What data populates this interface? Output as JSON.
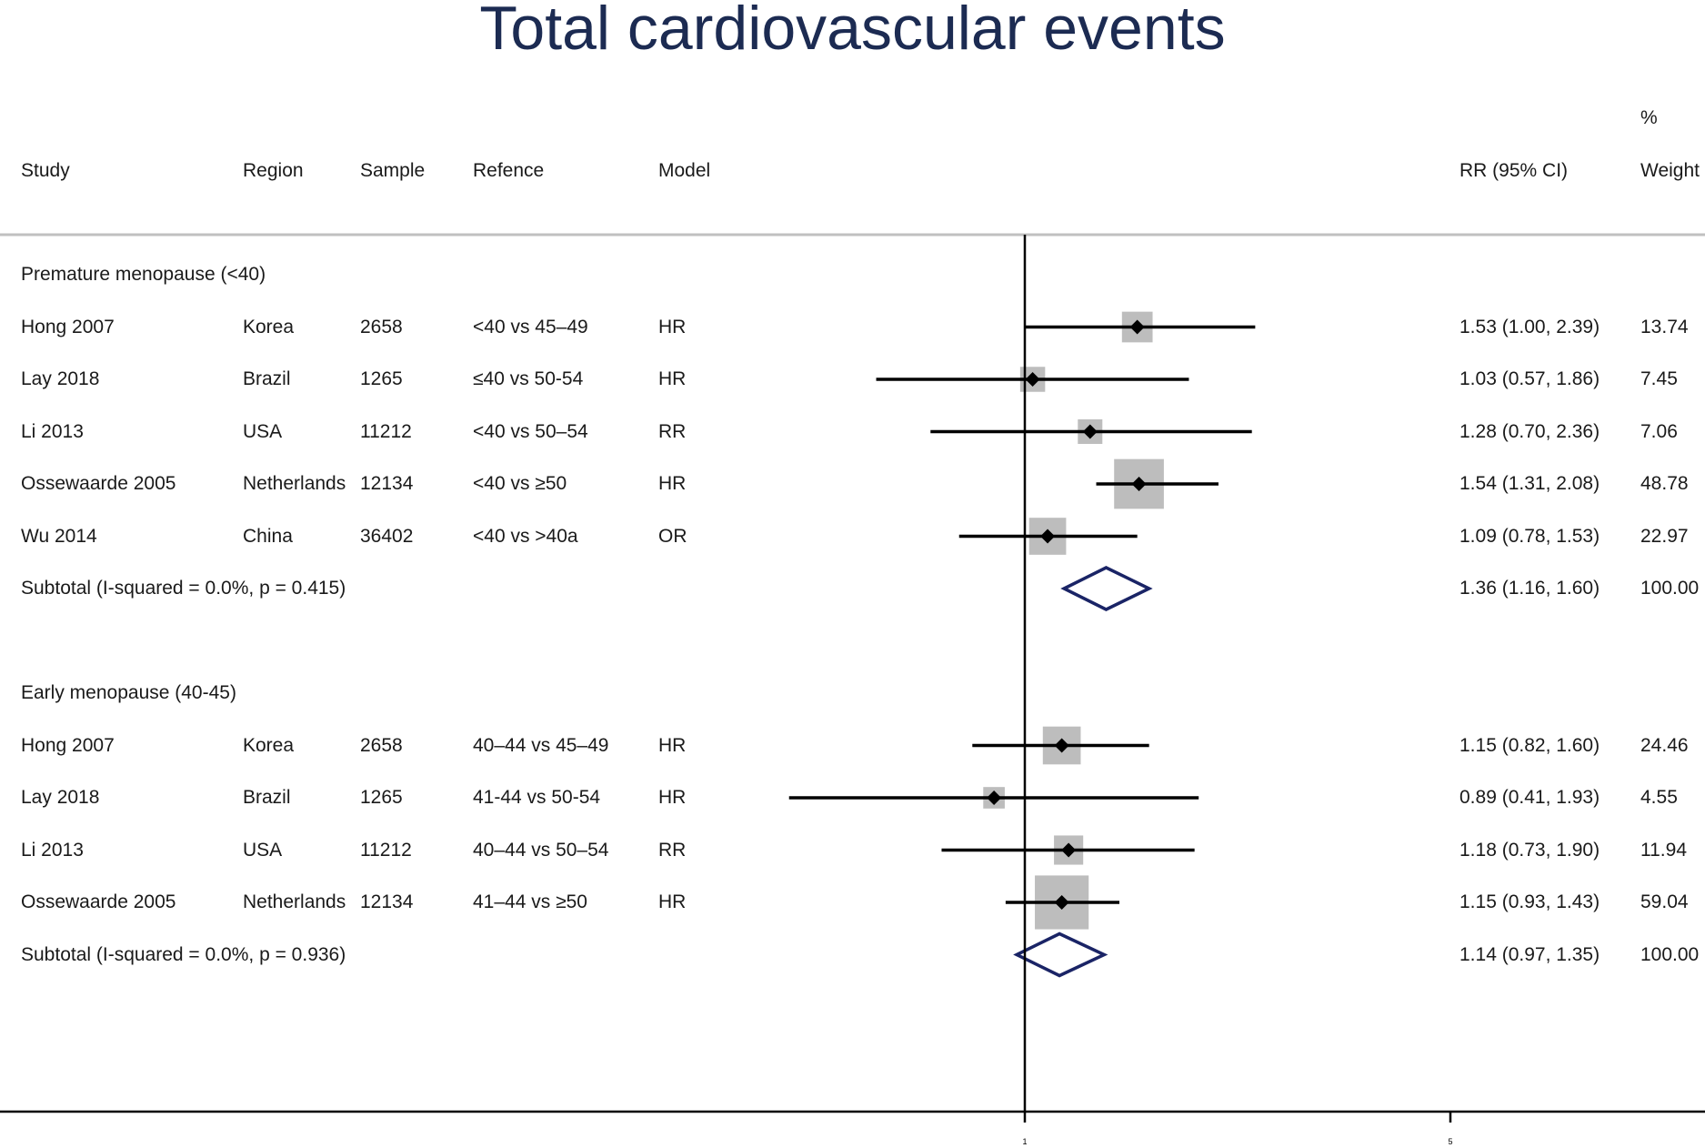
{
  "chart_data": {
    "type": "forest",
    "title": "Total cardiovascular events",
    "columns": {
      "study": "Study",
      "region": "Region",
      "sample": "Sample",
      "reference": "Refence",
      "model": "Model",
      "effect": "RR (95% CI)",
      "weight_top": "%",
      "weight": "Weight"
    },
    "xaxis": {
      "scale": "log",
      "ticks": [
        1,
        5
      ],
      "tick_labels": [
        "1",
        "5"
      ],
      "null_line": 1
    },
    "groups": [
      {
        "label": "Premature menopause (<40)",
        "studies": [
          {
            "study": "Hong 2007",
            "region": "Korea",
            "sample": "2658",
            "reference": "<40 vs 45–49",
            "model": "HR",
            "rr": 1.53,
            "lo": 1.0,
            "hi": 2.39,
            "ci_text": "1.53 (1.00, 2.39)",
            "weight": 13.74,
            "weight_text": "13.74"
          },
          {
            "study": "Lay 2018",
            "region": "Brazil",
            "sample": "1265",
            "reference": "≤40 vs 50-54",
            "model": "HR",
            "rr": 1.03,
            "lo": 0.57,
            "hi": 1.86,
            "ci_text": "1.03 (0.57, 1.86)",
            "weight": 7.45,
            "weight_text": "7.45"
          },
          {
            "study": "Li 2013",
            "region": "USA",
            "sample": "11212",
            "reference": "<40 vs 50–54",
            "model": "RR",
            "rr": 1.28,
            "lo": 0.7,
            "hi": 2.36,
            "ci_text": "1.28 (0.70, 2.36)",
            "weight": 7.06,
            "weight_text": "7.06"
          },
          {
            "study": "Ossewaarde 2005",
            "region": "Netherlands",
            "sample": "12134",
            "reference": "<40 vs ≥50",
            "model": "HR",
            "rr": 1.54,
            "lo": 1.31,
            "hi": 2.08,
            "ci_text": "1.54 (1.31, 2.08)",
            "weight": 48.78,
            "weight_text": "48.78"
          },
          {
            "study": "Wu 2014",
            "region": "China",
            "sample": "36402",
            "reference": "<40 vs >40a",
            "model": "OR",
            "rr": 1.09,
            "lo": 0.78,
            "hi": 1.53,
            "ci_text": "1.09 (0.78, 1.53)",
            "weight": 22.97,
            "weight_text": "22.97"
          }
        ],
        "subtotal": {
          "label": "Subtotal  (I-squared = 0.0%, p = 0.415)",
          "rr": 1.36,
          "lo": 1.16,
          "hi": 1.6,
          "ci_text": "1.36 (1.16, 1.60)",
          "weight_text": "100.00"
        }
      },
      {
        "label": "Early menopause (40-45)",
        "studies": [
          {
            "study": "Hong 2007",
            "region": "Korea",
            "sample": "2658",
            "reference": "40–44 vs 45–49",
            "model": "HR",
            "rr": 1.15,
            "lo": 0.82,
            "hi": 1.6,
            "ci_text": "1.15 (0.82, 1.60)",
            "weight": 24.46,
            "weight_text": "24.46"
          },
          {
            "study": "Lay 2018",
            "region": "Brazil",
            "sample": "1265",
            "reference": "41-44 vs 50-54",
            "model": "HR",
            "rr": 0.89,
            "lo": 0.41,
            "hi": 1.93,
            "ci_text": "0.89 (0.41, 1.93)",
            "weight": 4.55,
            "weight_text": "4.55"
          },
          {
            "study": "Li 2013",
            "region": "USA",
            "sample": "11212",
            "reference": "40–44 vs 50–54",
            "model": "RR",
            "rr": 1.18,
            "lo": 0.73,
            "hi": 1.9,
            "ci_text": "1.18 (0.73, 1.90)",
            "weight": 11.94,
            "weight_text": "11.94"
          },
          {
            "study": "Ossewaarde 2005",
            "region": "Netherlands",
            "sample": "12134",
            "reference": "41–44 vs ≥50",
            "model": "HR",
            "rr": 1.15,
            "lo": 0.93,
            "hi": 1.43,
            "ci_text": "1.15 (0.93, 1.43)",
            "weight": 59.04,
            "weight_text": "59.04"
          }
        ],
        "subtotal": {
          "label": "Subtotal  (I-squared = 0.0%, p = 0.936)",
          "rr": 1.14,
          "lo": 0.97,
          "hi": 1.35,
          "ci_text": "1.14 (0.97, 1.35)",
          "weight_text": "100.00"
        }
      }
    ]
  },
  "colors": {
    "title": "#1c2b52",
    "diamond": "#1a2466",
    "box": "#bdbdbd",
    "line": "#000000",
    "rule": "#c0c0c0"
  }
}
